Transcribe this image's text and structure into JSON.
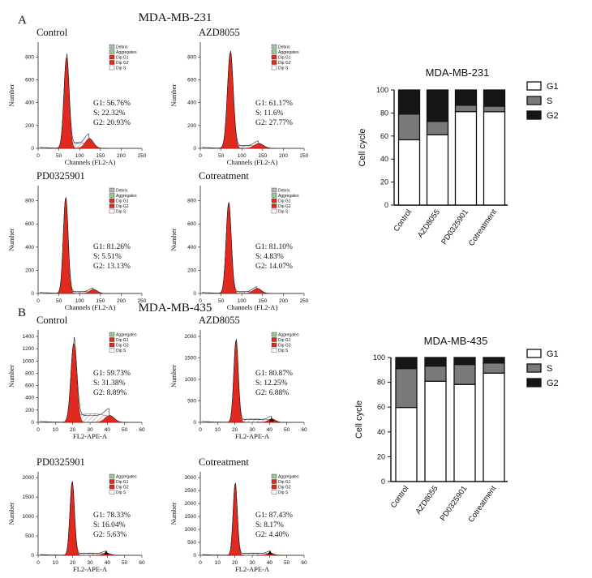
{
  "panels": [
    {
      "letter": "A",
      "title": "MDA-MB-231",
      "legend_labels": [
        "Debris",
        "Aggregates",
        "Dip G1",
        "Dip G2",
        "Dip S"
      ],
      "histograms": [
        {
          "name": "Control",
          "xlabel": "Channels (FL2-A)",
          "ylabel": "Number",
          "xticks": [
            "0",
            "50",
            "100",
            "150",
            "200",
            "250"
          ],
          "yticks": [
            "0",
            "200",
            "400",
            "600",
            "800"
          ],
          "stats": [
            "G1: 56.76%",
            "S: 22.32%",
            "G2: 20.93%"
          ]
        },
        {
          "name": "AZD8055",
          "xlabel": "Channels (FL2-A)",
          "ylabel": "Number",
          "xticks": [
            "0",
            "50",
            "100",
            "150",
            "200",
            "250"
          ],
          "yticks": [
            "0",
            "200",
            "400",
            "600",
            "800"
          ],
          "stats": [
            "G1: 61.17%",
            "S: 11.6%",
            "G2: 27.77%"
          ]
        },
        {
          "name": "PD0325901",
          "xlabel": "Channels (FL2-A)",
          "ylabel": "Number",
          "xticks": [
            "0",
            "50",
            "100",
            "150",
            "200",
            "250"
          ],
          "yticks": [
            "0",
            "200",
            "400",
            "600",
            "800"
          ],
          "stats": [
            "G1: 81.26%",
            "S: 5.51%",
            "G2: 13.13%"
          ]
        },
        {
          "name": "Cotreatment",
          "xlabel": "Channels (FL2-A)",
          "ylabel": "Number",
          "xticks": [
            "0",
            "50",
            "100",
            "150",
            "200",
            "250"
          ],
          "yticks": [
            "0",
            "200",
            "400",
            "600",
            "800"
          ],
          "stats": [
            "G1: 81.10%",
            "S: 4.83%",
            "G2: 14.07%"
          ]
        }
      ]
    },
    {
      "letter": "B",
      "title": "MDA-MB-435",
      "legend_labels": [
        "Aggregates",
        "Dip G1",
        "Dip G2",
        "Dip S"
      ],
      "histograms": [
        {
          "name": "Control",
          "xlabel": "FL2-APE-A",
          "ylabel": "Number",
          "xticks": [
            "0",
            "10",
            "20",
            "30",
            "40",
            "50",
            "60"
          ],
          "yticks": [
            "0",
            "200",
            "400",
            "600",
            "800",
            "1000",
            "1200",
            "1400"
          ],
          "stats": [
            "G1: 59.73%",
            "S: 31.38%",
            "G2: 8.89%"
          ]
        },
        {
          "name": "AZD8055",
          "xlabel": "FL2-APE-A",
          "ylabel": "Number",
          "xticks": [
            "0",
            "10",
            "20",
            "30",
            "40",
            "50",
            "60"
          ],
          "yticks": [
            "0",
            "500",
            "1000",
            "1500",
            "2000"
          ],
          "stats": [
            "G1: 80.87%",
            "S: 12.25%",
            "G2: 6.88%"
          ]
        },
        {
          "name": "PD0325901",
          "xlabel": "FL2-APE-A",
          "ylabel": "Number",
          "xticks": [
            "0",
            "10",
            "20",
            "30",
            "40",
            "50",
            "60"
          ],
          "yticks": [
            "0",
            "500",
            "1000",
            "1500",
            "2000"
          ],
          "stats": [
            "G1: 78.33%",
            "S: 16.04%",
            "G2: 5.63%"
          ]
        },
        {
          "name": "Cotreatment",
          "xlabel": "FL2-APE-A",
          "ylabel": "Number",
          "xticks": [
            "0",
            "10",
            "20",
            "30",
            "40",
            "50",
            "60"
          ],
          "yticks": [
            "0",
            "500",
            "1000",
            "1500",
            "2000",
            "2500",
            "3000"
          ],
          "stats": [
            "G1: 87.43%",
            "S: 8.17%",
            "G2: 4.40%"
          ]
        }
      ]
    }
  ],
  "colors": {
    "g1_fill": "#e02a1f",
    "s_fill": "#7a7a7a",
    "g2_fill": "#161616",
    "bar_g1": "#ffffff",
    "legend_debris": "#b7b7b7",
    "legend_aggregates": "#8fd18a",
    "legend_dips": "#ffffff"
  },
  "chart_data": [
    {
      "type": "bar",
      "stacked": true,
      "title": "MDA-MB-231",
      "ylabel": "Cell cycle",
      "xlabel": "",
      "ylim": [
        0,
        100
      ],
      "yticks": [
        0,
        20,
        40,
        60,
        80,
        100
      ],
      "categories": [
        "Control",
        "AZD8055",
        "PD0325901",
        "Cotreatment"
      ],
      "legend": [
        "G1",
        "S",
        "G2"
      ],
      "series": [
        {
          "name": "G1",
          "values": [
            56.76,
            61.17,
            81.26,
            81.1
          ]
        },
        {
          "name": "S",
          "values": [
            22.32,
            11.6,
            5.51,
            4.83
          ]
        },
        {
          "name": "G2",
          "values": [
            20.93,
            27.77,
            13.13,
            14.07
          ]
        }
      ]
    },
    {
      "type": "bar",
      "stacked": true,
      "title": "MDA-MB-435",
      "ylabel": "Cell cycle",
      "xlabel": "",
      "ylim": [
        0,
        100
      ],
      "yticks": [
        0,
        20,
        40,
        60,
        80,
        100
      ],
      "categories": [
        "Control",
        "AZD8055",
        "PD0325901",
        "Cotreatment"
      ],
      "legend": [
        "G1",
        "S",
        "G2"
      ],
      "series": [
        {
          "name": "G1",
          "values": [
            59.73,
            80.87,
            78.33,
            87.43
          ]
        },
        {
          "name": "S",
          "values": [
            31.38,
            12.25,
            16.04,
            8.17
          ]
        },
        {
          "name": "G2",
          "values": [
            8.89,
            6.88,
            5.63,
            4.4
          ]
        }
      ]
    }
  ]
}
